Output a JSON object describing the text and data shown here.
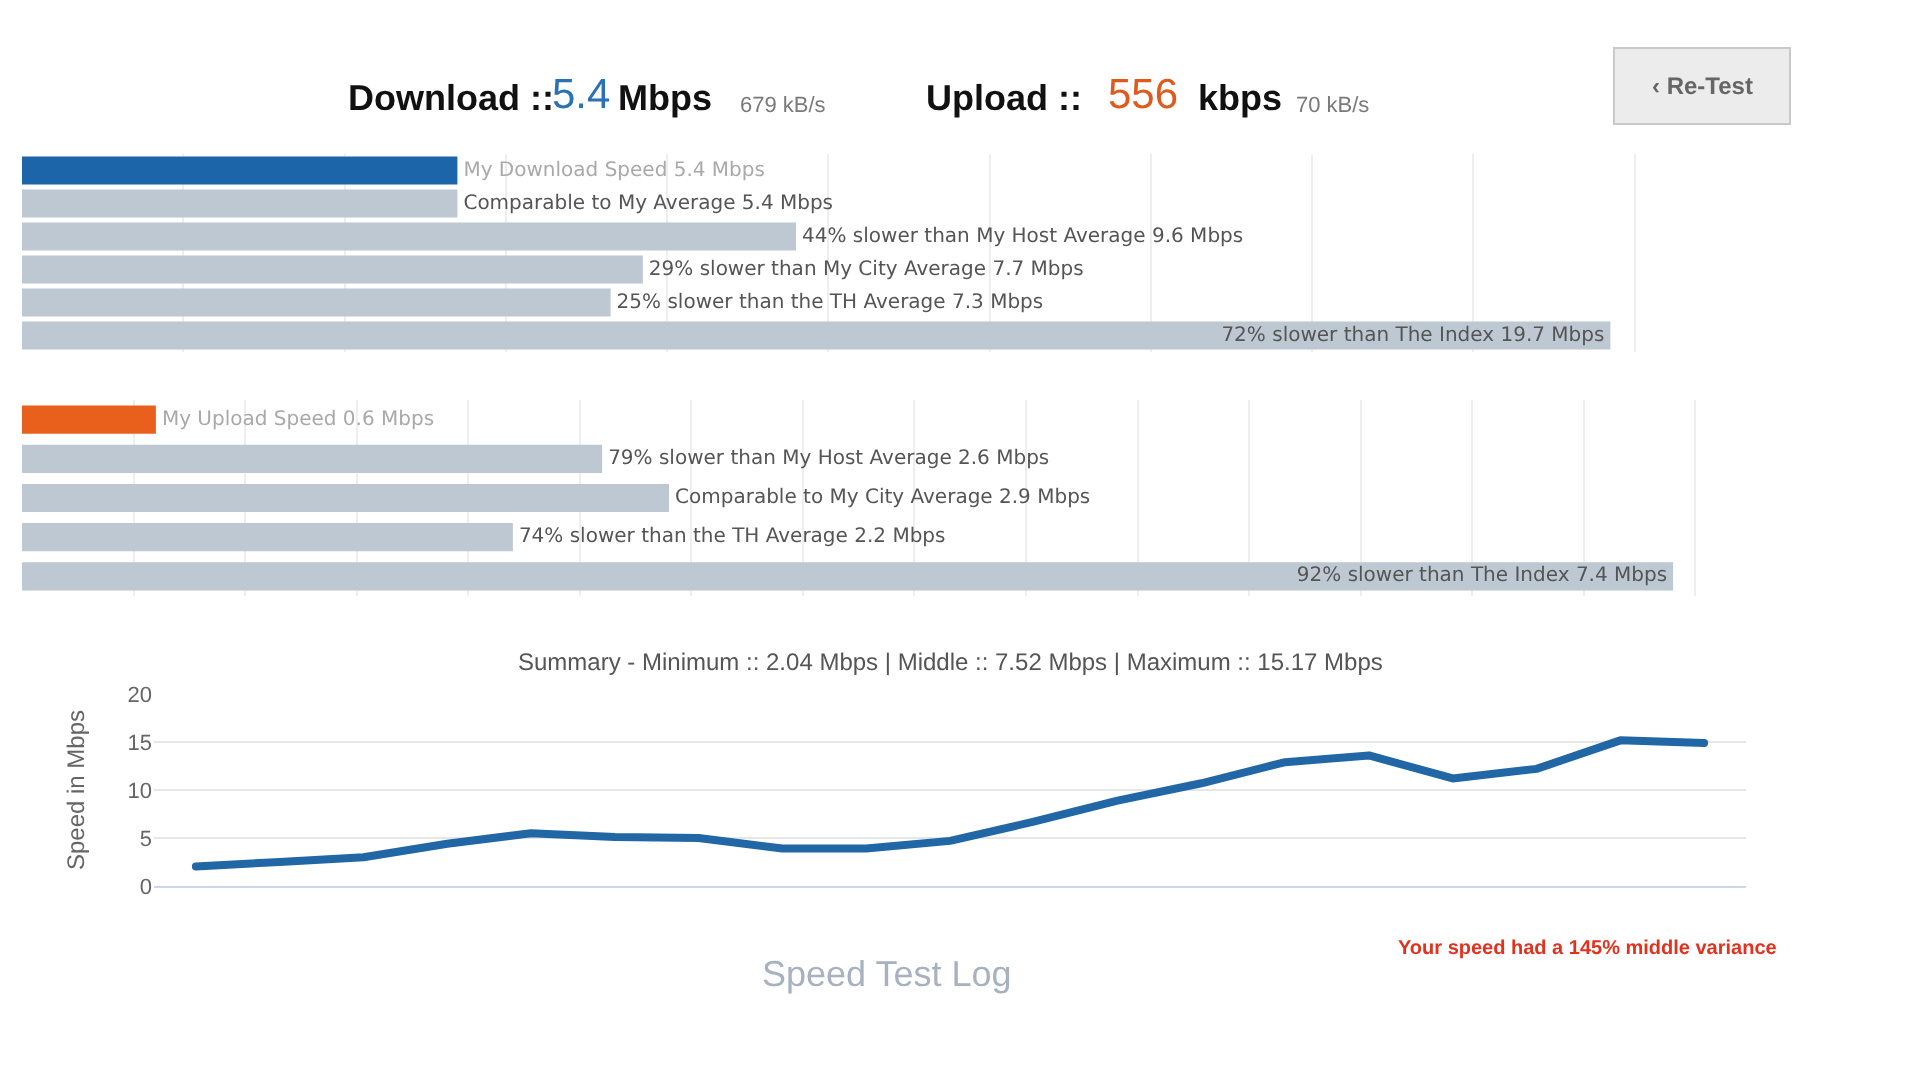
{
  "chart_data": [
    {
      "type": "other",
      "annotations": [
        "Download ::",
        "5.4",
        "Mbps",
        "679 kB/s",
        "Upload ::",
        "556",
        "kbps",
        "70 kB/s",
        "‹ Re-Test"
      ]
    },
    {
      "type": "bar",
      "orientation": "horizontal",
      "categories": [
        null,
        null,
        null,
        null,
        null,
        null
      ],
      "values": [
        5.4,
        5.4,
        9.6,
        7.7,
        7.3,
        19.7
      ],
      "colors": [
        "#1b65a8",
        "#bdc8d2",
        "#bdc8d2",
        "#bdc8d2",
        "#bdc8d2",
        "#bdc8d2"
      ],
      "value_labels": [
        "My Download Speed 5.4 Mbps",
        "Comparable to My Average 5.4 Mbps",
        "44% slower than My Host Average 9.6 Mbps",
        "29% slower than My City Average 7.7 Mbps",
        "25% slower than the TH Average 7.3 Mbps",
        "72% slower than The Index 19.7 Mbps"
      ],
      "xticks": [
        {
          "value": 2,
          "label": null
        },
        {
          "value": 4,
          "label": null
        },
        {
          "value": 6,
          "label": null
        },
        {
          "value": 8,
          "label": null
        },
        {
          "value": 10,
          "label": null
        },
        {
          "value": 12,
          "label": null
        },
        {
          "value": 14,
          "label": null
        },
        {
          "value": 16,
          "label": null
        },
        {
          "value": 18,
          "label": null
        },
        {
          "value": 20,
          "label": null
        }
      ],
      "tick_labels": false,
      "grid": "x"
    },
    {
      "type": "bar",
      "orientation": "horizontal",
      "categories": [
        null,
        null,
        null,
        null,
        null
      ],
      "values": [
        0.6,
        2.6,
        2.9,
        2.2,
        7.4
      ],
      "colors": [
        "#e8601c",
        "#bdc8d2",
        "#bdc8d2",
        "#bdc8d2",
        "#bdc8d2"
      ],
      "value_labels": [
        "My Upload Speed 0.6 Mbps",
        "79% slower than My Host Average 2.6 Mbps",
        "Comparable to My City Average 2.9 Mbps",
        "74% slower than the TH Average 2.2 Mbps",
        "92% slower than The Index 7.4 Mbps"
      ],
      "xticks": [
        {
          "value": 0.5,
          "label": null
        },
        {
          "value": 1,
          "label": null
        },
        {
          "value": 1.5,
          "label": null
        },
        {
          "value": 2,
          "label": null
        },
        {
          "value": 2.5,
          "label": null
        },
        {
          "value": 3,
          "label": null
        },
        {
          "value": 3.5,
          "label": null
        },
        {
          "value": 4,
          "label": null
        },
        {
          "value": 4.5,
          "label": null
        },
        {
          "value": 5,
          "label": null
        },
        {
          "value": 5.5,
          "label": null
        },
        {
          "value": 6,
          "label": null
        },
        {
          "value": 6.5,
          "label": null
        },
        {
          "value": 7,
          "label": null
        },
        {
          "value": 7.5,
          "label": null
        }
      ],
      "tick_labels": false,
      "grid": "x"
    },
    {
      "type": "line",
      "title": "Summary - Minimum :: 2.04 Mbps | Middle :: 7.52 Mbps | Maximum :: 15.17 Mbps",
      "ylabel": "Speed in Mbps",
      "categories": [
        null,
        null,
        null,
        null,
        null,
        null,
        null,
        null,
        null,
        null,
        null,
        null,
        null,
        null,
        null,
        null,
        null,
        null,
        null
      ],
      "series": [
        {
          "color": "#2166a5",
          "values": [
            2.04,
            2.5,
            3.0,
            4.4,
            5.5,
            5.1,
            5.0,
            3.9,
            3.9,
            4.7,
            6.7,
            8.9,
            10.7,
            12.9,
            13.6,
            11.2,
            12.2,
            15.17,
            14.9
          ]
        }
      ],
      "ylim": [
        0,
        20
      ],
      "yticks": [
        0,
        5,
        10,
        15,
        20
      ],
      "grid": "y",
      "tick_labels": "y",
      "line_style": "solid",
      "annotations": [
        "Your speed had a 145% middle variance"
      ]
    },
    {
      "type": "other",
      "title": "Speed Test Log"
    }
  ]
}
